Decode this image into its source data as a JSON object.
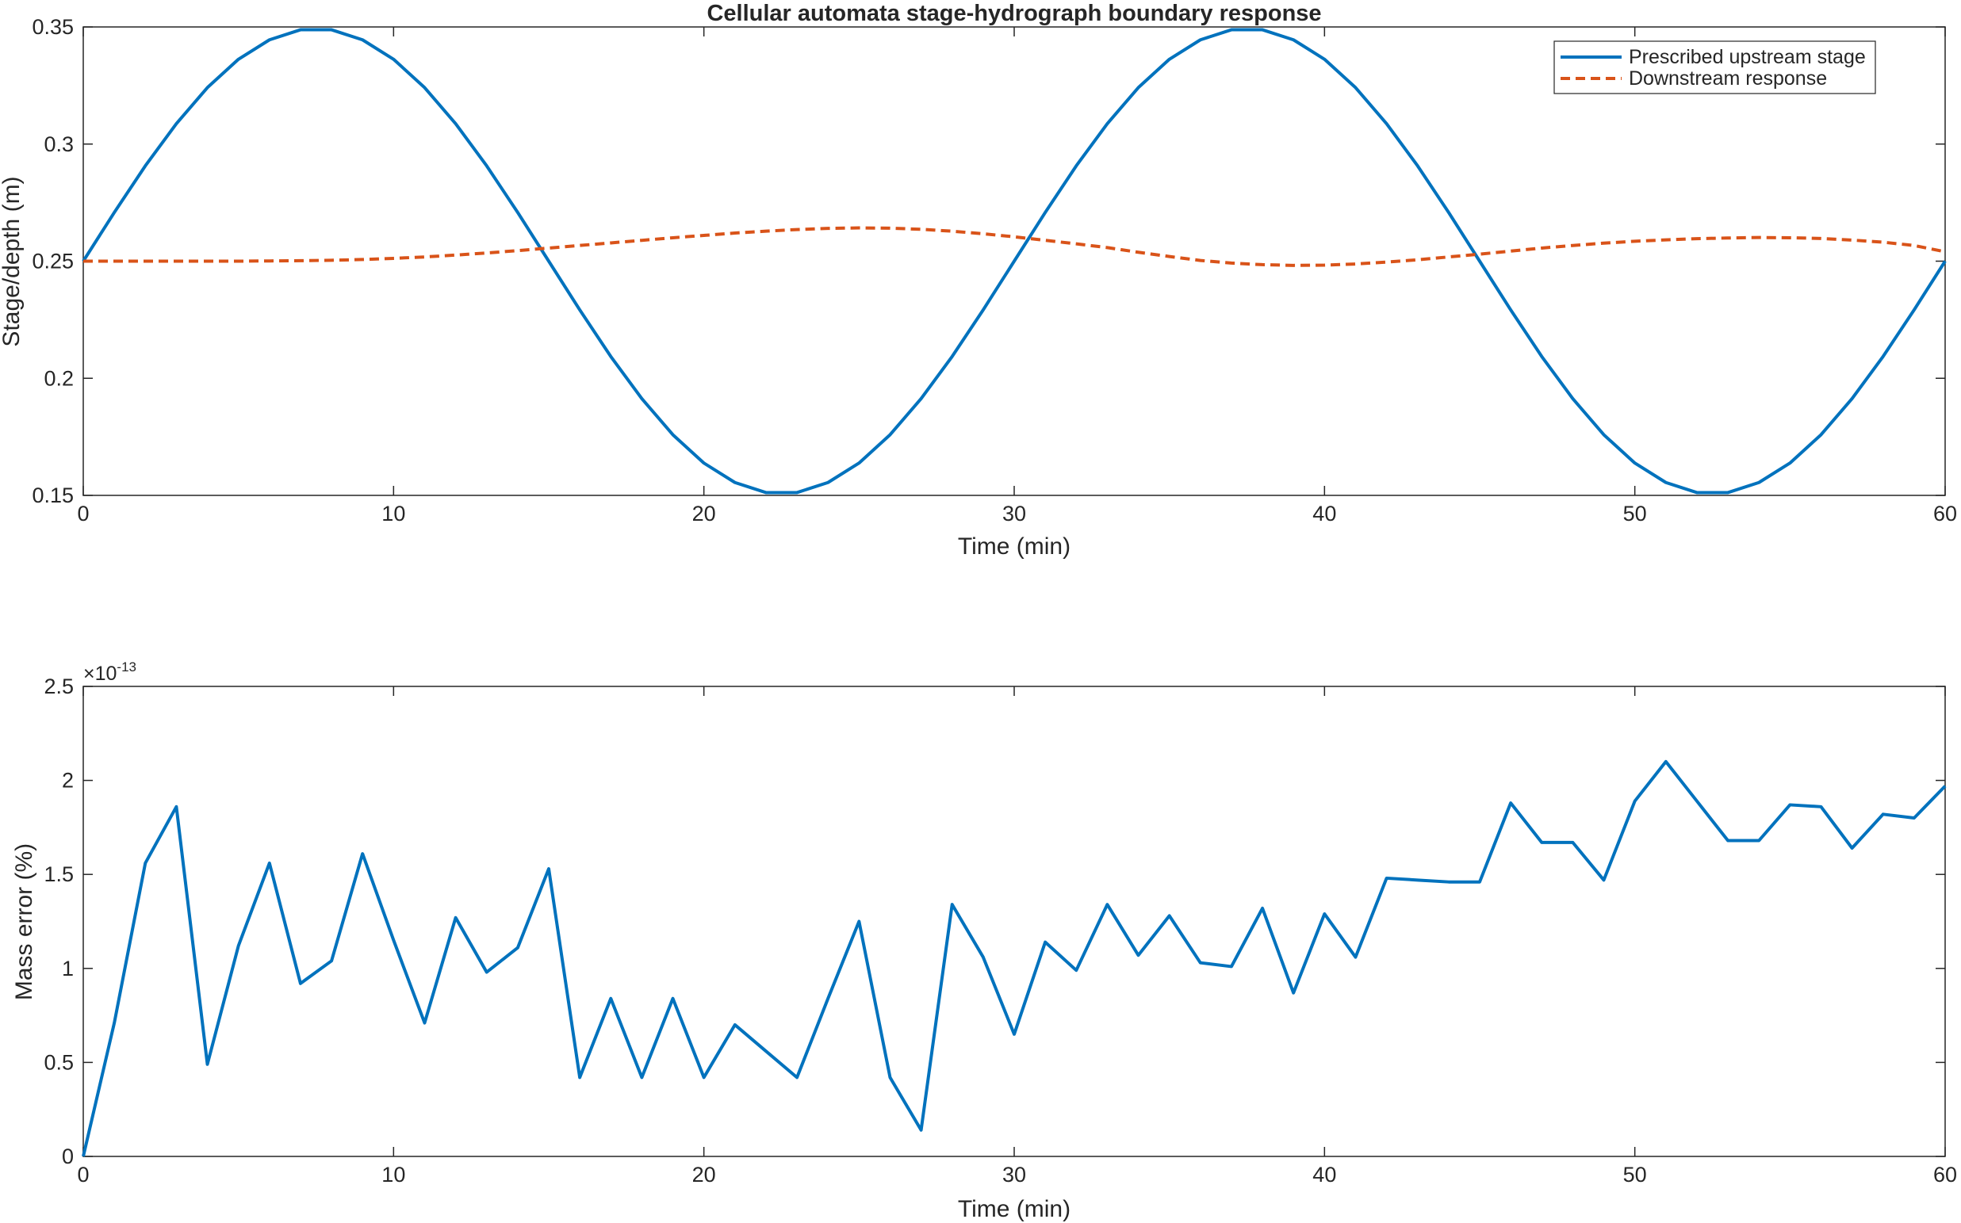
{
  "chart_data": [
    {
      "type": "line",
      "title": "Cellular automata stage-hydrograph boundary response",
      "xlabel": "Time (min)",
      "ylabel": "Stage/depth (m)",
      "xlim": [
        0,
        60
      ],
      "ylim": [
        0.15,
        0.35
      ],
      "xticks": [
        0,
        10,
        20,
        30,
        40,
        50,
        60
      ],
      "yticks": [
        0.15,
        0.2,
        0.25,
        0.3,
        0.35
      ],
      "xtick_labels": [
        "0",
        "10",
        "20",
        "30",
        "40",
        "50",
        "60"
      ],
      "ytick_labels": [
        "0.15",
        "0.2",
        "0.25",
        "0.3",
        "0.35"
      ],
      "grid": false,
      "legend_position": "top-right",
      "x": [
        0,
        1,
        2,
        3,
        4,
        5,
        6,
        7,
        8,
        9,
        10,
        11,
        12,
        13,
        14,
        15,
        16,
        17,
        18,
        19,
        20,
        21,
        22,
        23,
        24,
        25,
        26,
        27,
        28,
        29,
        30,
        31,
        32,
        33,
        34,
        35,
        36,
        37,
        38,
        39,
        40,
        41,
        42,
        43,
        44,
        45,
        46,
        47,
        48,
        49,
        50,
        51,
        52,
        53,
        54,
        55,
        56,
        57,
        58,
        59,
        60
      ],
      "series": [
        {
          "name": "Prescribed upstream stage",
          "color": "#0072BD",
          "style": "solid",
          "values": [
            0.25,
            0.2708,
            0.2907,
            0.3087,
            0.3241,
            0.3362,
            0.3445,
            0.3488,
            0.3488,
            0.3445,
            0.3362,
            0.3241,
            0.3087,
            0.2907,
            0.2708,
            0.25,
            0.2292,
            0.2093,
            0.1913,
            0.1759,
            0.1638,
            0.1555,
            0.1512,
            0.1512,
            0.1555,
            0.1638,
            0.1759,
            0.1913,
            0.2093,
            0.2292,
            0.25,
            0.2708,
            0.2907,
            0.3087,
            0.3241,
            0.3362,
            0.3445,
            0.3488,
            0.3488,
            0.3445,
            0.3362,
            0.3241,
            0.3087,
            0.2907,
            0.2708,
            0.25,
            0.2292,
            0.2093,
            0.1913,
            0.1759,
            0.1638,
            0.1555,
            0.1512,
            0.1512,
            0.1555,
            0.1638,
            0.1759,
            0.1913,
            0.2093,
            0.2292,
            0.25
          ]
        },
        {
          "name": "Downstream response",
          "color": "#D95319",
          "style": "dashed",
          "values": [
            0.25,
            0.25,
            0.25,
            0.25,
            0.25,
            0.25,
            0.2501,
            0.2502,
            0.2504,
            0.2507,
            0.2512,
            0.2518,
            0.2526,
            0.2535,
            0.2545,
            0.2556,
            0.2567,
            0.2578,
            0.2589,
            0.26,
            0.261,
            0.262,
            0.2628,
            0.2635,
            0.264,
            0.2642,
            0.2641,
            0.2636,
            0.2628,
            0.2617,
            0.2604,
            0.2589,
            0.2574,
            0.2558,
            0.2538,
            0.252,
            0.2503,
            0.2492,
            0.2485,
            0.2482,
            0.2483,
            0.2488,
            0.2496,
            0.2506,
            0.2518,
            0.253,
            0.2543,
            0.2556,
            0.2567,
            0.2577,
            0.2585,
            0.2591,
            0.2596,
            0.2599,
            0.2601,
            0.26,
            0.2597,
            0.259,
            0.2581,
            0.2567,
            0.254
          ]
        }
      ]
    },
    {
      "type": "line",
      "title": "",
      "xlabel": "Time (min)",
      "ylabel": "Mass error (%)",
      "y_multiplier": "×10⁻¹³",
      "xlim": [
        0,
        60
      ],
      "ylim": [
        0,
        2.5
      ],
      "xticks": [
        0,
        10,
        20,
        30,
        40,
        50,
        60
      ],
      "yticks": [
        0,
        0.5,
        1,
        1.5,
        2,
        2.5
      ],
      "xtick_labels": [
        "0",
        "10",
        "20",
        "30",
        "40",
        "50",
        "60"
      ],
      "ytick_labels": [
        "0",
        "0.5",
        "1",
        "1.5",
        "2",
        "2.5"
      ],
      "exponent_base": "×10",
      "exponent_power": "-13",
      "grid": false,
      "x": [
        0,
        1,
        2,
        3,
        4,
        5,
        6,
        7,
        8,
        9,
        10,
        11,
        12,
        13,
        14,
        15,
        16,
        17,
        18,
        19,
        20,
        21,
        22,
        23,
        24,
        25,
        26,
        27,
        28,
        29,
        30,
        31,
        32,
        33,
        34,
        35,
        36,
        37,
        38,
        39,
        40,
        41,
        42,
        43,
        44,
        45,
        46,
        47,
        48,
        49,
        50,
        51,
        52,
        53,
        54,
        55,
        56,
        57,
        58,
        59,
        60
      ],
      "series": [
        {
          "color": "#0072BD",
          "style": "solid",
          "values": [
            0,
            0.71,
            1.56,
            1.86,
            0.49,
            1.12,
            1.56,
            0.92,
            1.04,
            1.61,
            1.15,
            0.71,
            1.27,
            0.98,
            1.11,
            1.53,
            0.42,
            0.84,
            0.42,
            0.84,
            0.42,
            0.7,
            0.56,
            0.42,
            0.84,
            1.25,
            0.42,
            0.14,
            1.34,
            1.06,
            0.65,
            1.14,
            0.99,
            1.34,
            1.07,
            1.28,
            1.03,
            1.01,
            1.32,
            0.87,
            1.29,
            1.06,
            1.48,
            1.47,
            1.46,
            1.46,
            1.88,
            1.67,
            1.67,
            1.47,
            1.89,
            2.1,
            1.89,
            1.68,
            1.68,
            1.87,
            1.86,
            1.64,
            1.82,
            1.8,
            1.97
          ]
        }
      ]
    }
  ]
}
